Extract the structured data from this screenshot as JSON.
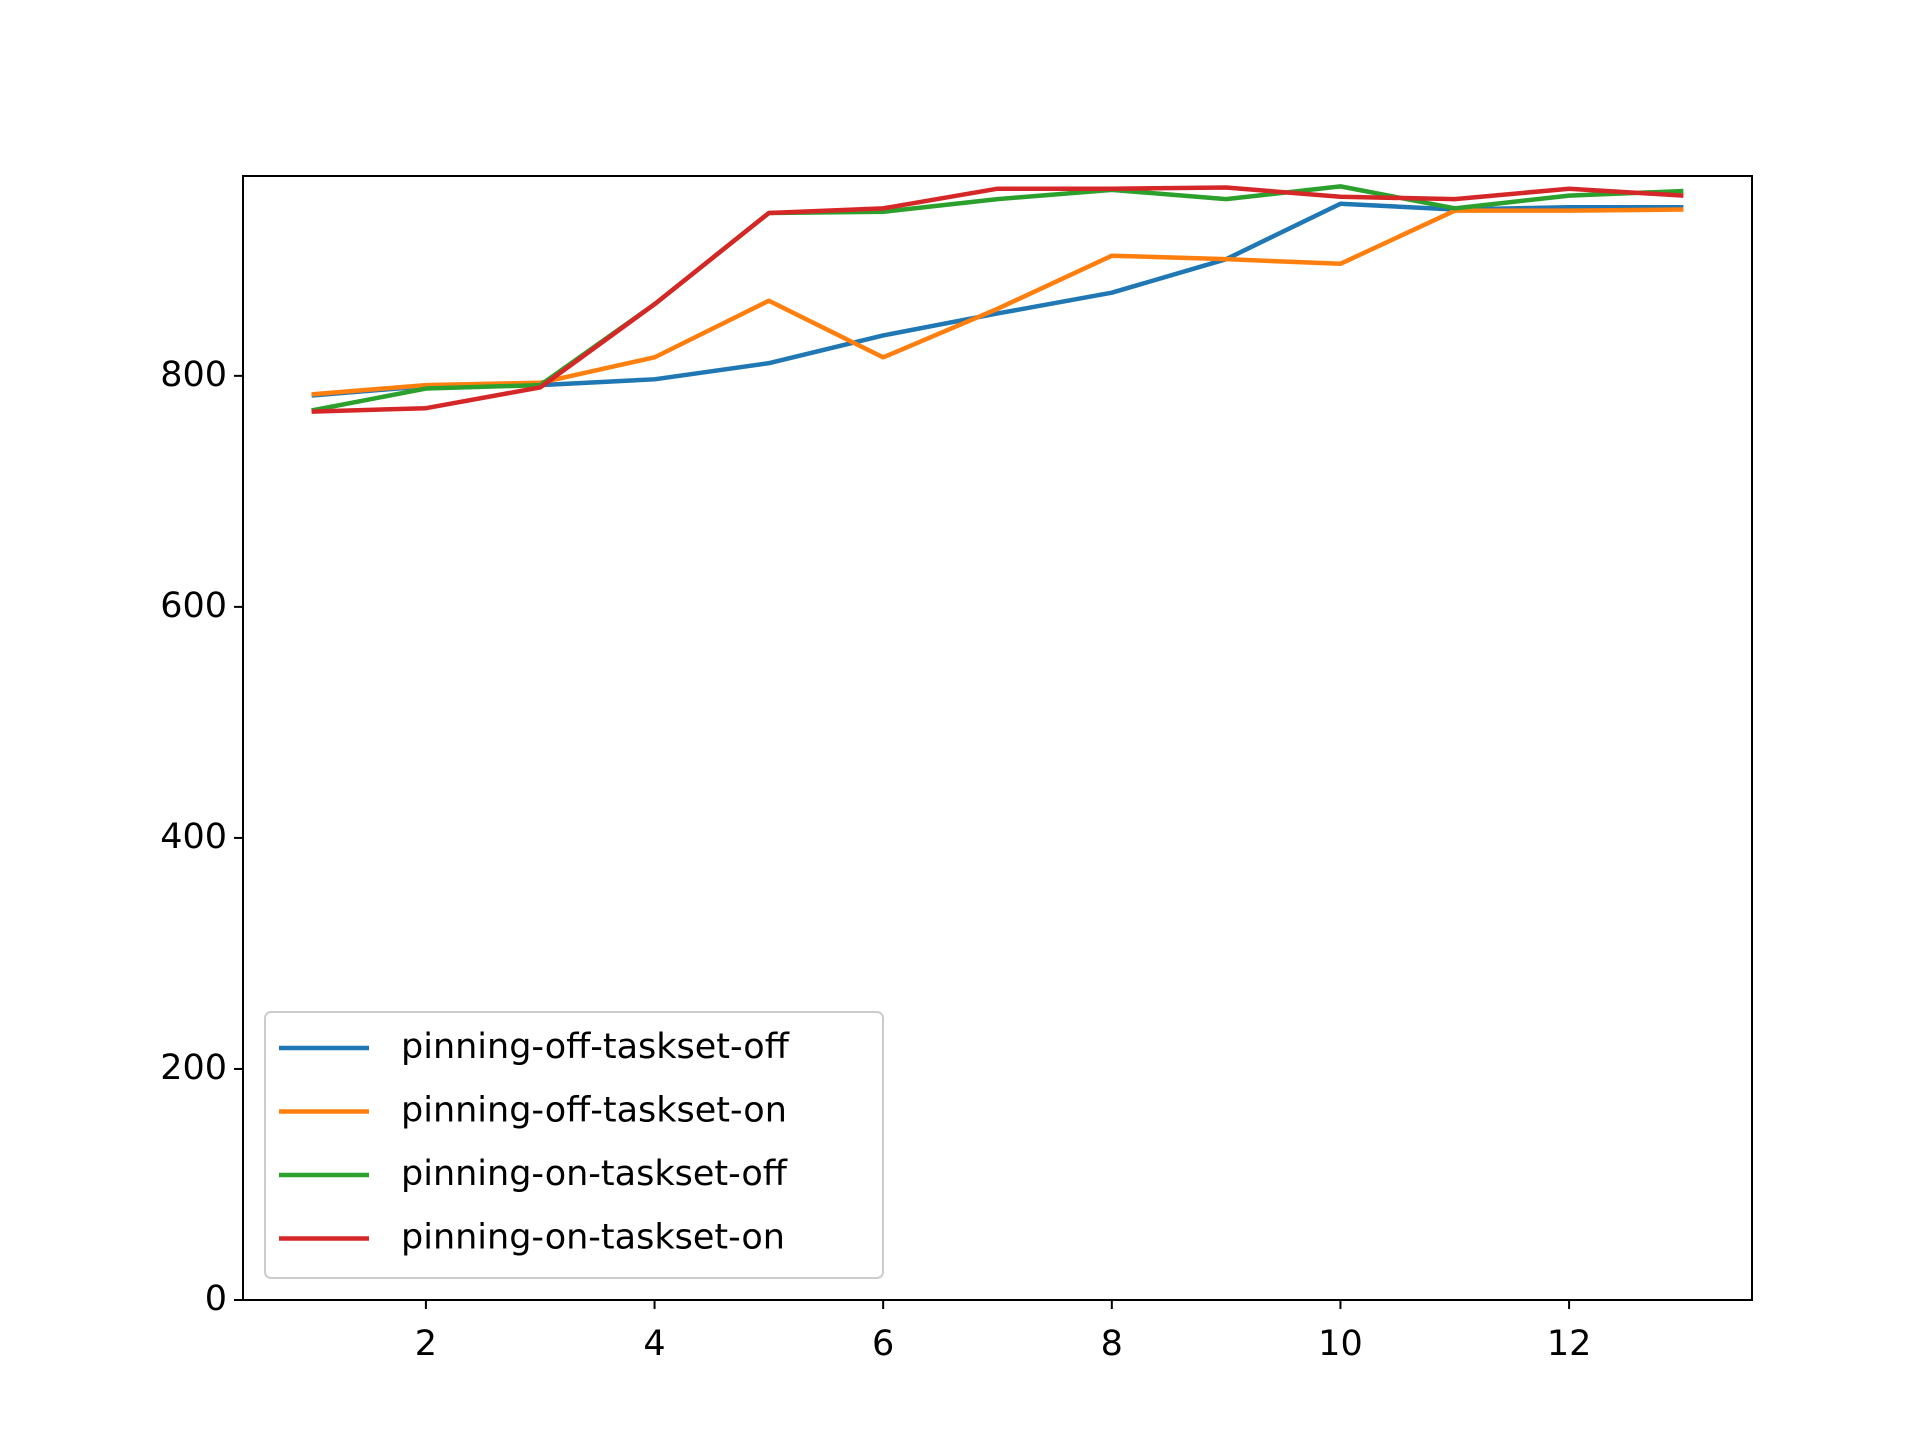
{
  "chart_data": {
    "type": "line",
    "x": [
      1,
      2,
      3,
      4,
      5,
      6,
      7,
      8,
      9,
      10,
      11,
      12,
      13
    ],
    "series": [
      {
        "name": "pinning-off-taskset-off",
        "color": "#1f77b4",
        "values": [
          783,
          791,
          792,
          797,
          811,
          835,
          854,
          872,
          901,
          949,
          944,
          946,
          946
        ]
      },
      {
        "name": "pinning-off-taskset-on",
        "color": "#ff7f0e",
        "values": [
          784,
          792,
          794,
          816,
          865,
          816,
          858,
          904,
          901,
          897,
          943,
          943,
          944
        ]
      },
      {
        "name": "pinning-on-taskset-off",
        "color": "#2ca02c",
        "values": [
          770,
          789,
          792,
          862,
          941,
          942,
          953,
          961,
          953,
          964,
          945,
          956,
          960
        ]
      },
      {
        "name": "pinning-on-taskset-on",
        "color": "#d62728",
        "values": [
          769,
          772,
          790,
          862,
          941,
          945,
          962,
          962,
          963,
          955,
          953,
          962,
          956
        ]
      }
    ],
    "xlim": [
      0.4,
      13.6
    ],
    "xticks": [
      2,
      4,
      6,
      8,
      10,
      12
    ],
    "ylim": [
      0,
      973
    ],
    "yticks": [
      0,
      200,
      400,
      600,
      800
    ],
    "legend": "lower left"
  }
}
